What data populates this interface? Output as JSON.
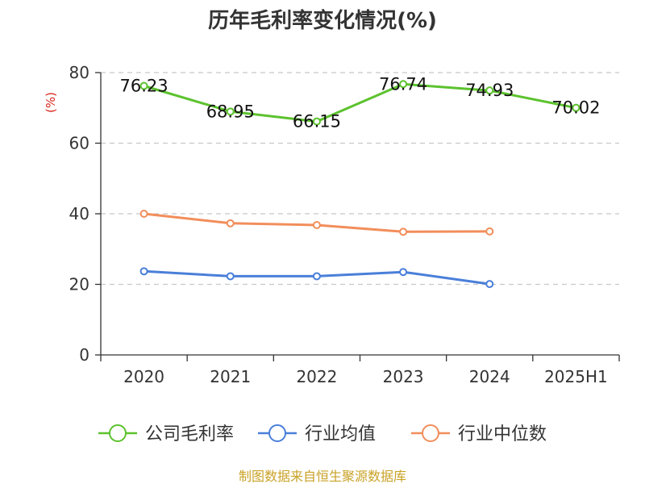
{
  "chart_data": {
    "type": "line",
    "title": "历年毛利率变化情况(%)",
    "ylabel": "(%)",
    "ylim": [
      0,
      80
    ],
    "yticks": [
      0,
      20,
      40,
      60,
      80
    ],
    "grid": true,
    "legend_position": "bottom",
    "categories": [
      "2020",
      "2021",
      "2022",
      "2023",
      "2024",
      "2025H1"
    ],
    "series": [
      {
        "name": "公司毛利率",
        "color": "#5cc22e",
        "values": [
          76.23,
          68.95,
          66.15,
          76.74,
          74.93,
          70.02
        ],
        "labels": [
          "76.23",
          "68.95",
          "66.15",
          "76.74",
          "74.93",
          "70.02"
        ]
      },
      {
        "name": "行业均值",
        "color": "#4a7fd9",
        "values": [
          23.7,
          22.3,
          22.3,
          23.5,
          20.1,
          null
        ]
      },
      {
        "name": "行业中位数",
        "color": "#f28e5b",
        "values": [
          40.0,
          37.3,
          36.8,
          34.9,
          35.0,
          null
        ]
      }
    ]
  },
  "footer": {
    "source": "制图数据来自恒生聚源数据库"
  }
}
